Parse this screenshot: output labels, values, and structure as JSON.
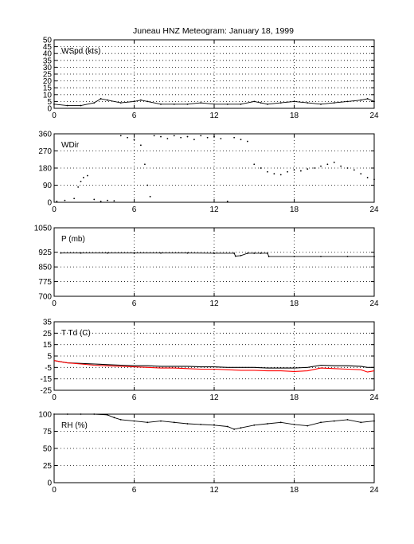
{
  "title": "Juneau HNZ Meteogram:    January 18, 1999",
  "colors": {
    "axis": "#000000",
    "trace_primary": "#000000",
    "trace_dewpoint": "#ff0000"
  },
  "chart_data": [
    {
      "type": "scatter",
      "label": "WSpd (kts)",
      "x_ticks": [
        0,
        6,
        12,
        18,
        24
      ],
      "xlim": [
        0,
        24
      ],
      "ylim": [
        0,
        50
      ],
      "y_ticks": [
        0,
        5,
        10,
        15,
        20,
        25,
        30,
        35,
        40,
        45,
        50
      ],
      "grid": true,
      "series": [
        {
          "color": "#000000",
          "x": [
            0,
            1,
            2,
            3,
            3.5,
            4,
            5,
            6,
            6.5,
            7,
            8,
            9,
            10,
            11,
            12,
            13,
            14,
            15,
            15.5,
            16,
            17,
            18,
            19,
            20,
            21,
            22,
            23,
            23.5,
            24
          ],
          "y": [
            3,
            2,
            2,
            4,
            7,
            6,
            4,
            5,
            6,
            5,
            3,
            3,
            3,
            4,
            3,
            3,
            3,
            5,
            4,
            3,
            4,
            5,
            4,
            3,
            4,
            5,
            6,
            7,
            5
          ]
        }
      ]
    },
    {
      "type": "scatter",
      "label": "WDir",
      "x_ticks": [
        0,
        6,
        12,
        18,
        24
      ],
      "xlim": [
        0,
        24
      ],
      "ylim": [
        0,
        360
      ],
      "y_ticks": [
        0,
        90,
        180,
        270,
        360
      ],
      "grid": true,
      "series": [
        {
          "color": "#000000",
          "x": [
            0.2,
            0.8,
            1.5,
            1.8,
            2,
            2.2,
            2.5,
            3,
            3.5,
            4,
            4.5,
            5,
            5.5,
            6,
            6.5,
            6.8,
            7,
            7.2,
            7.5,
            8,
            8.5,
            9,
            9.5,
            10,
            10.5,
            11,
            11.5,
            12,
            12.5,
            13,
            13.5,
            14,
            14.5,
            15,
            15.5,
            16,
            16.5,
            17,
            17.5,
            18,
            18.5,
            19,
            19.5,
            20,
            20.5,
            21,
            21.5,
            22,
            22.5,
            23,
            23.5,
            24
          ],
          "y": [
            5,
            10,
            20,
            80,
            110,
            130,
            140,
            15,
            5,
            10,
            8,
            350,
            340,
            330,
            300,
            200,
            90,
            30,
            350,
            345,
            335,
            350,
            340,
            345,
            330,
            350,
            340,
            345,
            335,
            5,
            340,
            330,
            320,
            200,
            180,
            160,
            150,
            145,
            160,
            170,
            165,
            175,
            180,
            190,
            200,
            210,
            190,
            180,
            170,
            150,
            130,
            120
          ]
        }
      ]
    },
    {
      "type": "scatter",
      "label": "P (mb)",
      "x_ticks": [
        0,
        6,
        12,
        18,
        24
      ],
      "xlim": [
        0,
        24
      ],
      "ylim": [
        700,
        1050
      ],
      "y_ticks": [
        700,
        775,
        850,
        925,
        1050
      ],
      "grid": true,
      "series": [
        {
          "color": "#000000",
          "x": [
            0.5,
            2,
            4,
            6,
            8,
            10,
            12,
            13.5,
            13.6,
            14,
            14.5,
            15,
            15.5,
            16,
            16.1,
            18,
            20,
            22,
            24
          ],
          "y": [
            921,
            921,
            921,
            921,
            921,
            921,
            920,
            920,
            905,
            908,
            920,
            920,
            920,
            920,
            903,
            903,
            903,
            903,
            903
          ]
        }
      ]
    },
    {
      "type": "line",
      "label": "T Td (C)",
      "x_ticks": [
        0,
        6,
        12,
        18,
        24
      ],
      "xlim": [
        0,
        24
      ],
      "ylim": [
        -25,
        35
      ],
      "y_ticks": [
        -25,
        -15,
        -5,
        5,
        15,
        25,
        35
      ],
      "grid": true,
      "series": [
        {
          "color": "#000000",
          "x": [
            0,
            0.5,
            1,
            2,
            3,
            4,
            5,
            6,
            7,
            8,
            9,
            10,
            11,
            12,
            13,
            14,
            15,
            16,
            17,
            18,
            19,
            20,
            21,
            22,
            23,
            23.5,
            24
          ],
          "y": [
            1,
            0,
            -1,
            -1.5,
            -2,
            -2.5,
            -3,
            -3.5,
            -3.5,
            -4,
            -4,
            -4,
            -4.5,
            -4.5,
            -5,
            -5,
            -5,
            -5.5,
            -5.5,
            -5.5,
            -5,
            -3,
            -3.5,
            -3.5,
            -4,
            -5,
            -5
          ]
        },
        {
          "color": "#ff0000",
          "x": [
            0,
            0.5,
            1,
            2,
            3,
            4,
            5,
            6,
            7,
            8,
            9,
            10,
            11,
            12,
            13,
            14,
            15,
            16,
            17,
            18,
            19,
            20,
            21,
            22,
            23,
            23.5,
            24
          ],
          "y": [
            1,
            0,
            -1,
            -2,
            -3,
            -3.5,
            -4,
            -4.5,
            -5,
            -5.5,
            -5.5,
            -6,
            -6.5,
            -6.5,
            -7,
            -7.5,
            -7.5,
            -8,
            -8,
            -8.5,
            -8,
            -5.5,
            -6,
            -6.5,
            -7,
            -9,
            -8
          ]
        }
      ]
    },
    {
      "type": "scatter",
      "label": "RH (%)",
      "x_ticks": [
        0,
        6,
        12,
        18,
        24
      ],
      "xlim": [
        0,
        24
      ],
      "ylim": [
        0,
        100
      ],
      "y_ticks": [
        0,
        25,
        50,
        75,
        100
      ],
      "grid": true,
      "series": [
        {
          "color": "#000000",
          "x": [
            0,
            1,
            2,
            3,
            4,
            4.5,
            5,
            6,
            7,
            8,
            9,
            10,
            11,
            12,
            13,
            13.5,
            14,
            15,
            16,
            17,
            18,
            19,
            20,
            21,
            22,
            23,
            24
          ],
          "y": [
            100,
            100,
            100,
            100,
            99,
            95,
            92,
            90,
            88,
            90,
            88,
            86,
            85,
            84,
            82,
            78,
            80,
            84,
            86,
            88,
            85,
            83,
            88,
            90,
            92,
            88,
            90
          ]
        }
      ]
    }
  ]
}
